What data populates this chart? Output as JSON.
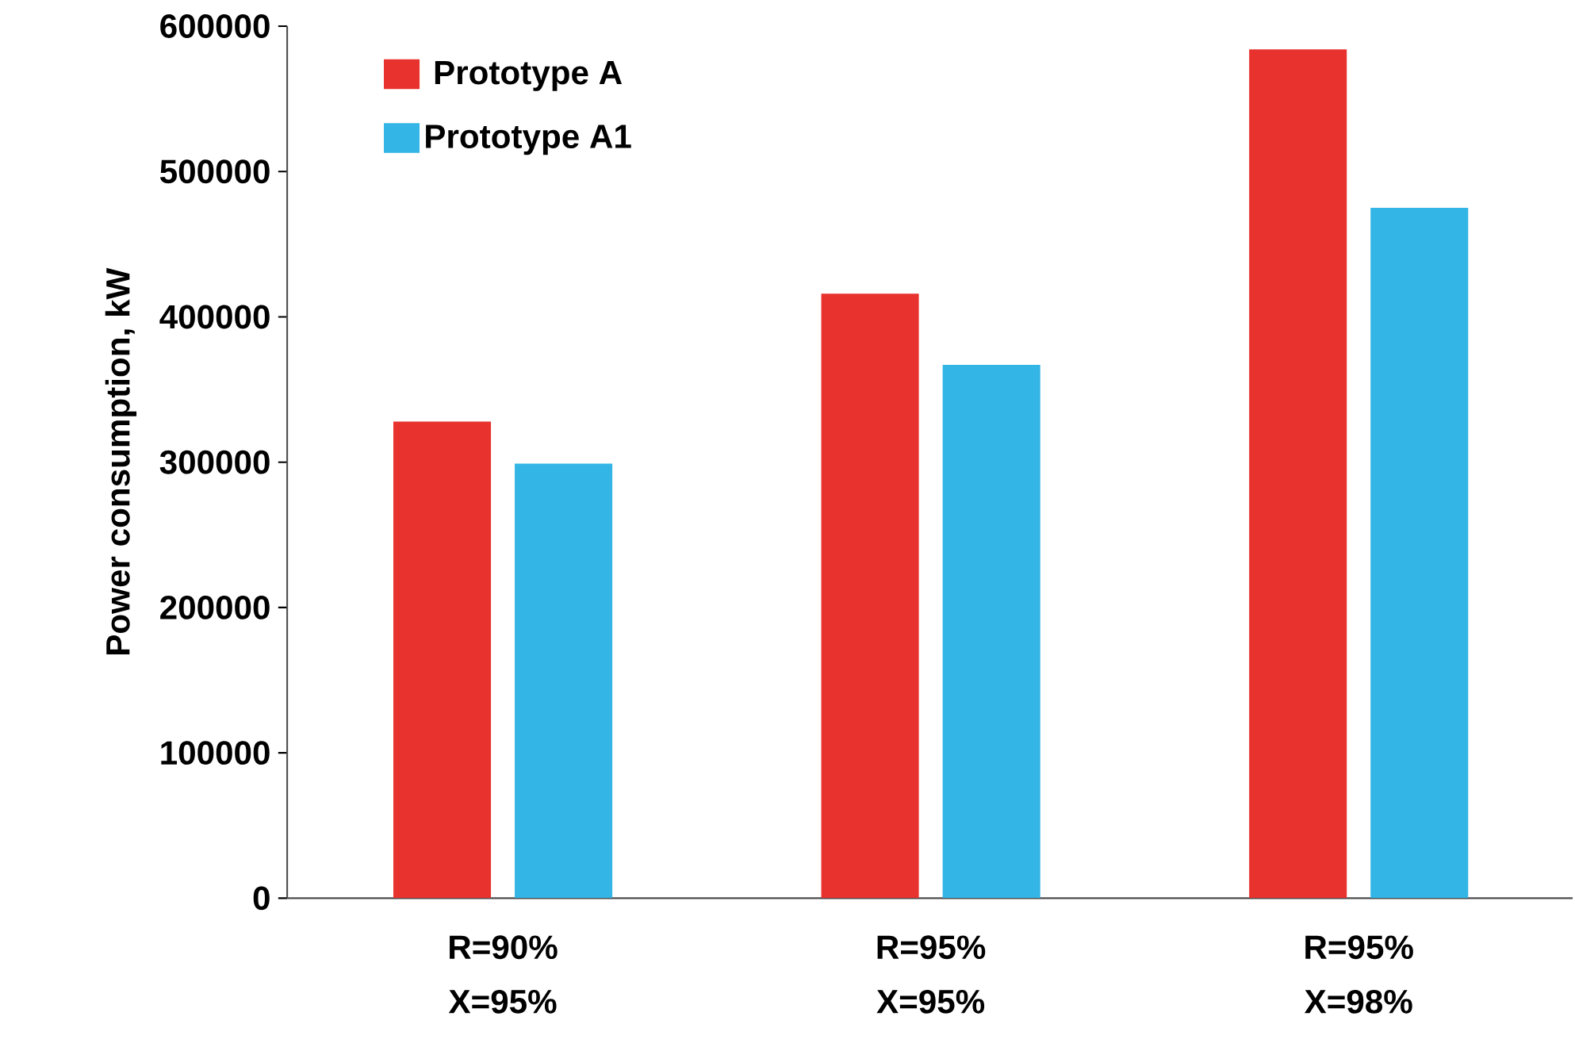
{
  "chart_data": {
    "type": "bar",
    "ylabel": "Power consumption, kW",
    "categories": [
      "R=90% X=95%",
      "R=95% X=95%",
      "R=95% X=98%"
    ],
    "series": [
      {
        "name": "Prototype A",
        "color": "#e8322e",
        "values": [
          328000,
          416000,
          584000
        ]
      },
      {
        "name": "Prototype A1",
        "color": "#33b5e5",
        "values": [
          299000,
          367000,
          475000
        ]
      }
    ],
    "ylim": [
      0,
      600000
    ],
    "yticks": [
      0,
      100000,
      200000,
      300000,
      400000,
      500000,
      600000
    ],
    "legend": "top left",
    "grid": false
  }
}
